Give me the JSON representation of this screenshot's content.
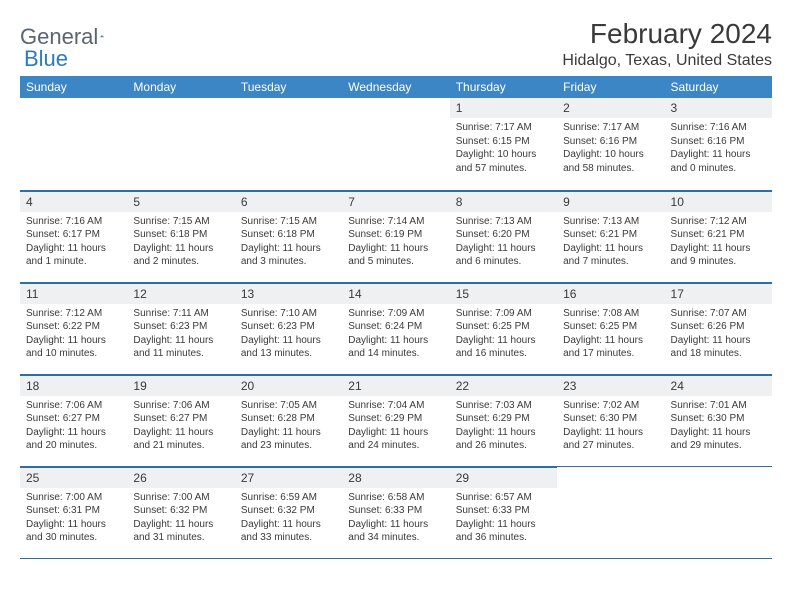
{
  "logo": {
    "text_general": "General",
    "text_blue": "Blue"
  },
  "title": "February 2024",
  "location": "Hidalgo, Texas, United States",
  "colors": {
    "header_bg": "#3d86c6",
    "header_text": "#ffffff",
    "daynum_bg": "#eef0f1",
    "border": "#2f6fa8",
    "body_text": "#3a3a3a",
    "logo_gray": "#5a6570",
    "logo_blue": "#2b7bbf"
  },
  "weekdays": [
    "Sunday",
    "Monday",
    "Tuesday",
    "Wednesday",
    "Thursday",
    "Friday",
    "Saturday"
  ],
  "weeks": [
    [
      {
        "blank": true
      },
      {
        "blank": true
      },
      {
        "blank": true
      },
      {
        "blank": true
      },
      {
        "n": "1",
        "sunrise": "Sunrise: 7:17 AM",
        "sunset": "Sunset: 6:15 PM",
        "daylight": "Daylight: 10 hours and 57 minutes."
      },
      {
        "n": "2",
        "sunrise": "Sunrise: 7:17 AM",
        "sunset": "Sunset: 6:16 PM",
        "daylight": "Daylight: 10 hours and 58 minutes."
      },
      {
        "n": "3",
        "sunrise": "Sunrise: 7:16 AM",
        "sunset": "Sunset: 6:16 PM",
        "daylight": "Daylight: 11 hours and 0 minutes."
      }
    ],
    [
      {
        "n": "4",
        "sunrise": "Sunrise: 7:16 AM",
        "sunset": "Sunset: 6:17 PM",
        "daylight": "Daylight: 11 hours and 1 minute."
      },
      {
        "n": "5",
        "sunrise": "Sunrise: 7:15 AM",
        "sunset": "Sunset: 6:18 PM",
        "daylight": "Daylight: 11 hours and 2 minutes."
      },
      {
        "n": "6",
        "sunrise": "Sunrise: 7:15 AM",
        "sunset": "Sunset: 6:18 PM",
        "daylight": "Daylight: 11 hours and 3 minutes."
      },
      {
        "n": "7",
        "sunrise": "Sunrise: 7:14 AM",
        "sunset": "Sunset: 6:19 PM",
        "daylight": "Daylight: 11 hours and 5 minutes."
      },
      {
        "n": "8",
        "sunrise": "Sunrise: 7:13 AM",
        "sunset": "Sunset: 6:20 PM",
        "daylight": "Daylight: 11 hours and 6 minutes."
      },
      {
        "n": "9",
        "sunrise": "Sunrise: 7:13 AM",
        "sunset": "Sunset: 6:21 PM",
        "daylight": "Daylight: 11 hours and 7 minutes."
      },
      {
        "n": "10",
        "sunrise": "Sunrise: 7:12 AM",
        "sunset": "Sunset: 6:21 PM",
        "daylight": "Daylight: 11 hours and 9 minutes."
      }
    ],
    [
      {
        "n": "11",
        "sunrise": "Sunrise: 7:12 AM",
        "sunset": "Sunset: 6:22 PM",
        "daylight": "Daylight: 11 hours and 10 minutes."
      },
      {
        "n": "12",
        "sunrise": "Sunrise: 7:11 AM",
        "sunset": "Sunset: 6:23 PM",
        "daylight": "Daylight: 11 hours and 11 minutes."
      },
      {
        "n": "13",
        "sunrise": "Sunrise: 7:10 AM",
        "sunset": "Sunset: 6:23 PM",
        "daylight": "Daylight: 11 hours and 13 minutes."
      },
      {
        "n": "14",
        "sunrise": "Sunrise: 7:09 AM",
        "sunset": "Sunset: 6:24 PM",
        "daylight": "Daylight: 11 hours and 14 minutes."
      },
      {
        "n": "15",
        "sunrise": "Sunrise: 7:09 AM",
        "sunset": "Sunset: 6:25 PM",
        "daylight": "Daylight: 11 hours and 16 minutes."
      },
      {
        "n": "16",
        "sunrise": "Sunrise: 7:08 AM",
        "sunset": "Sunset: 6:25 PM",
        "daylight": "Daylight: 11 hours and 17 minutes."
      },
      {
        "n": "17",
        "sunrise": "Sunrise: 7:07 AM",
        "sunset": "Sunset: 6:26 PM",
        "daylight": "Daylight: 11 hours and 18 minutes."
      }
    ],
    [
      {
        "n": "18",
        "sunrise": "Sunrise: 7:06 AM",
        "sunset": "Sunset: 6:27 PM",
        "daylight": "Daylight: 11 hours and 20 minutes."
      },
      {
        "n": "19",
        "sunrise": "Sunrise: 7:06 AM",
        "sunset": "Sunset: 6:27 PM",
        "daylight": "Daylight: 11 hours and 21 minutes."
      },
      {
        "n": "20",
        "sunrise": "Sunrise: 7:05 AM",
        "sunset": "Sunset: 6:28 PM",
        "daylight": "Daylight: 11 hours and 23 minutes."
      },
      {
        "n": "21",
        "sunrise": "Sunrise: 7:04 AM",
        "sunset": "Sunset: 6:29 PM",
        "daylight": "Daylight: 11 hours and 24 minutes."
      },
      {
        "n": "22",
        "sunrise": "Sunrise: 7:03 AM",
        "sunset": "Sunset: 6:29 PM",
        "daylight": "Daylight: 11 hours and 26 minutes."
      },
      {
        "n": "23",
        "sunrise": "Sunrise: 7:02 AM",
        "sunset": "Sunset: 6:30 PM",
        "daylight": "Daylight: 11 hours and 27 minutes."
      },
      {
        "n": "24",
        "sunrise": "Sunrise: 7:01 AM",
        "sunset": "Sunset: 6:30 PM",
        "daylight": "Daylight: 11 hours and 29 minutes."
      }
    ],
    [
      {
        "n": "25",
        "sunrise": "Sunrise: 7:00 AM",
        "sunset": "Sunset: 6:31 PM",
        "daylight": "Daylight: 11 hours and 30 minutes."
      },
      {
        "n": "26",
        "sunrise": "Sunrise: 7:00 AM",
        "sunset": "Sunset: 6:32 PM",
        "daylight": "Daylight: 11 hours and 31 minutes."
      },
      {
        "n": "27",
        "sunrise": "Sunrise: 6:59 AM",
        "sunset": "Sunset: 6:32 PM",
        "daylight": "Daylight: 11 hours and 33 minutes."
      },
      {
        "n": "28",
        "sunrise": "Sunrise: 6:58 AM",
        "sunset": "Sunset: 6:33 PM",
        "daylight": "Daylight: 11 hours and 34 minutes."
      },
      {
        "n": "29",
        "sunrise": "Sunrise: 6:57 AM",
        "sunset": "Sunset: 6:33 PM",
        "daylight": "Daylight: 11 hours and 36 minutes."
      },
      {
        "blank": true
      },
      {
        "blank": true
      }
    ]
  ]
}
